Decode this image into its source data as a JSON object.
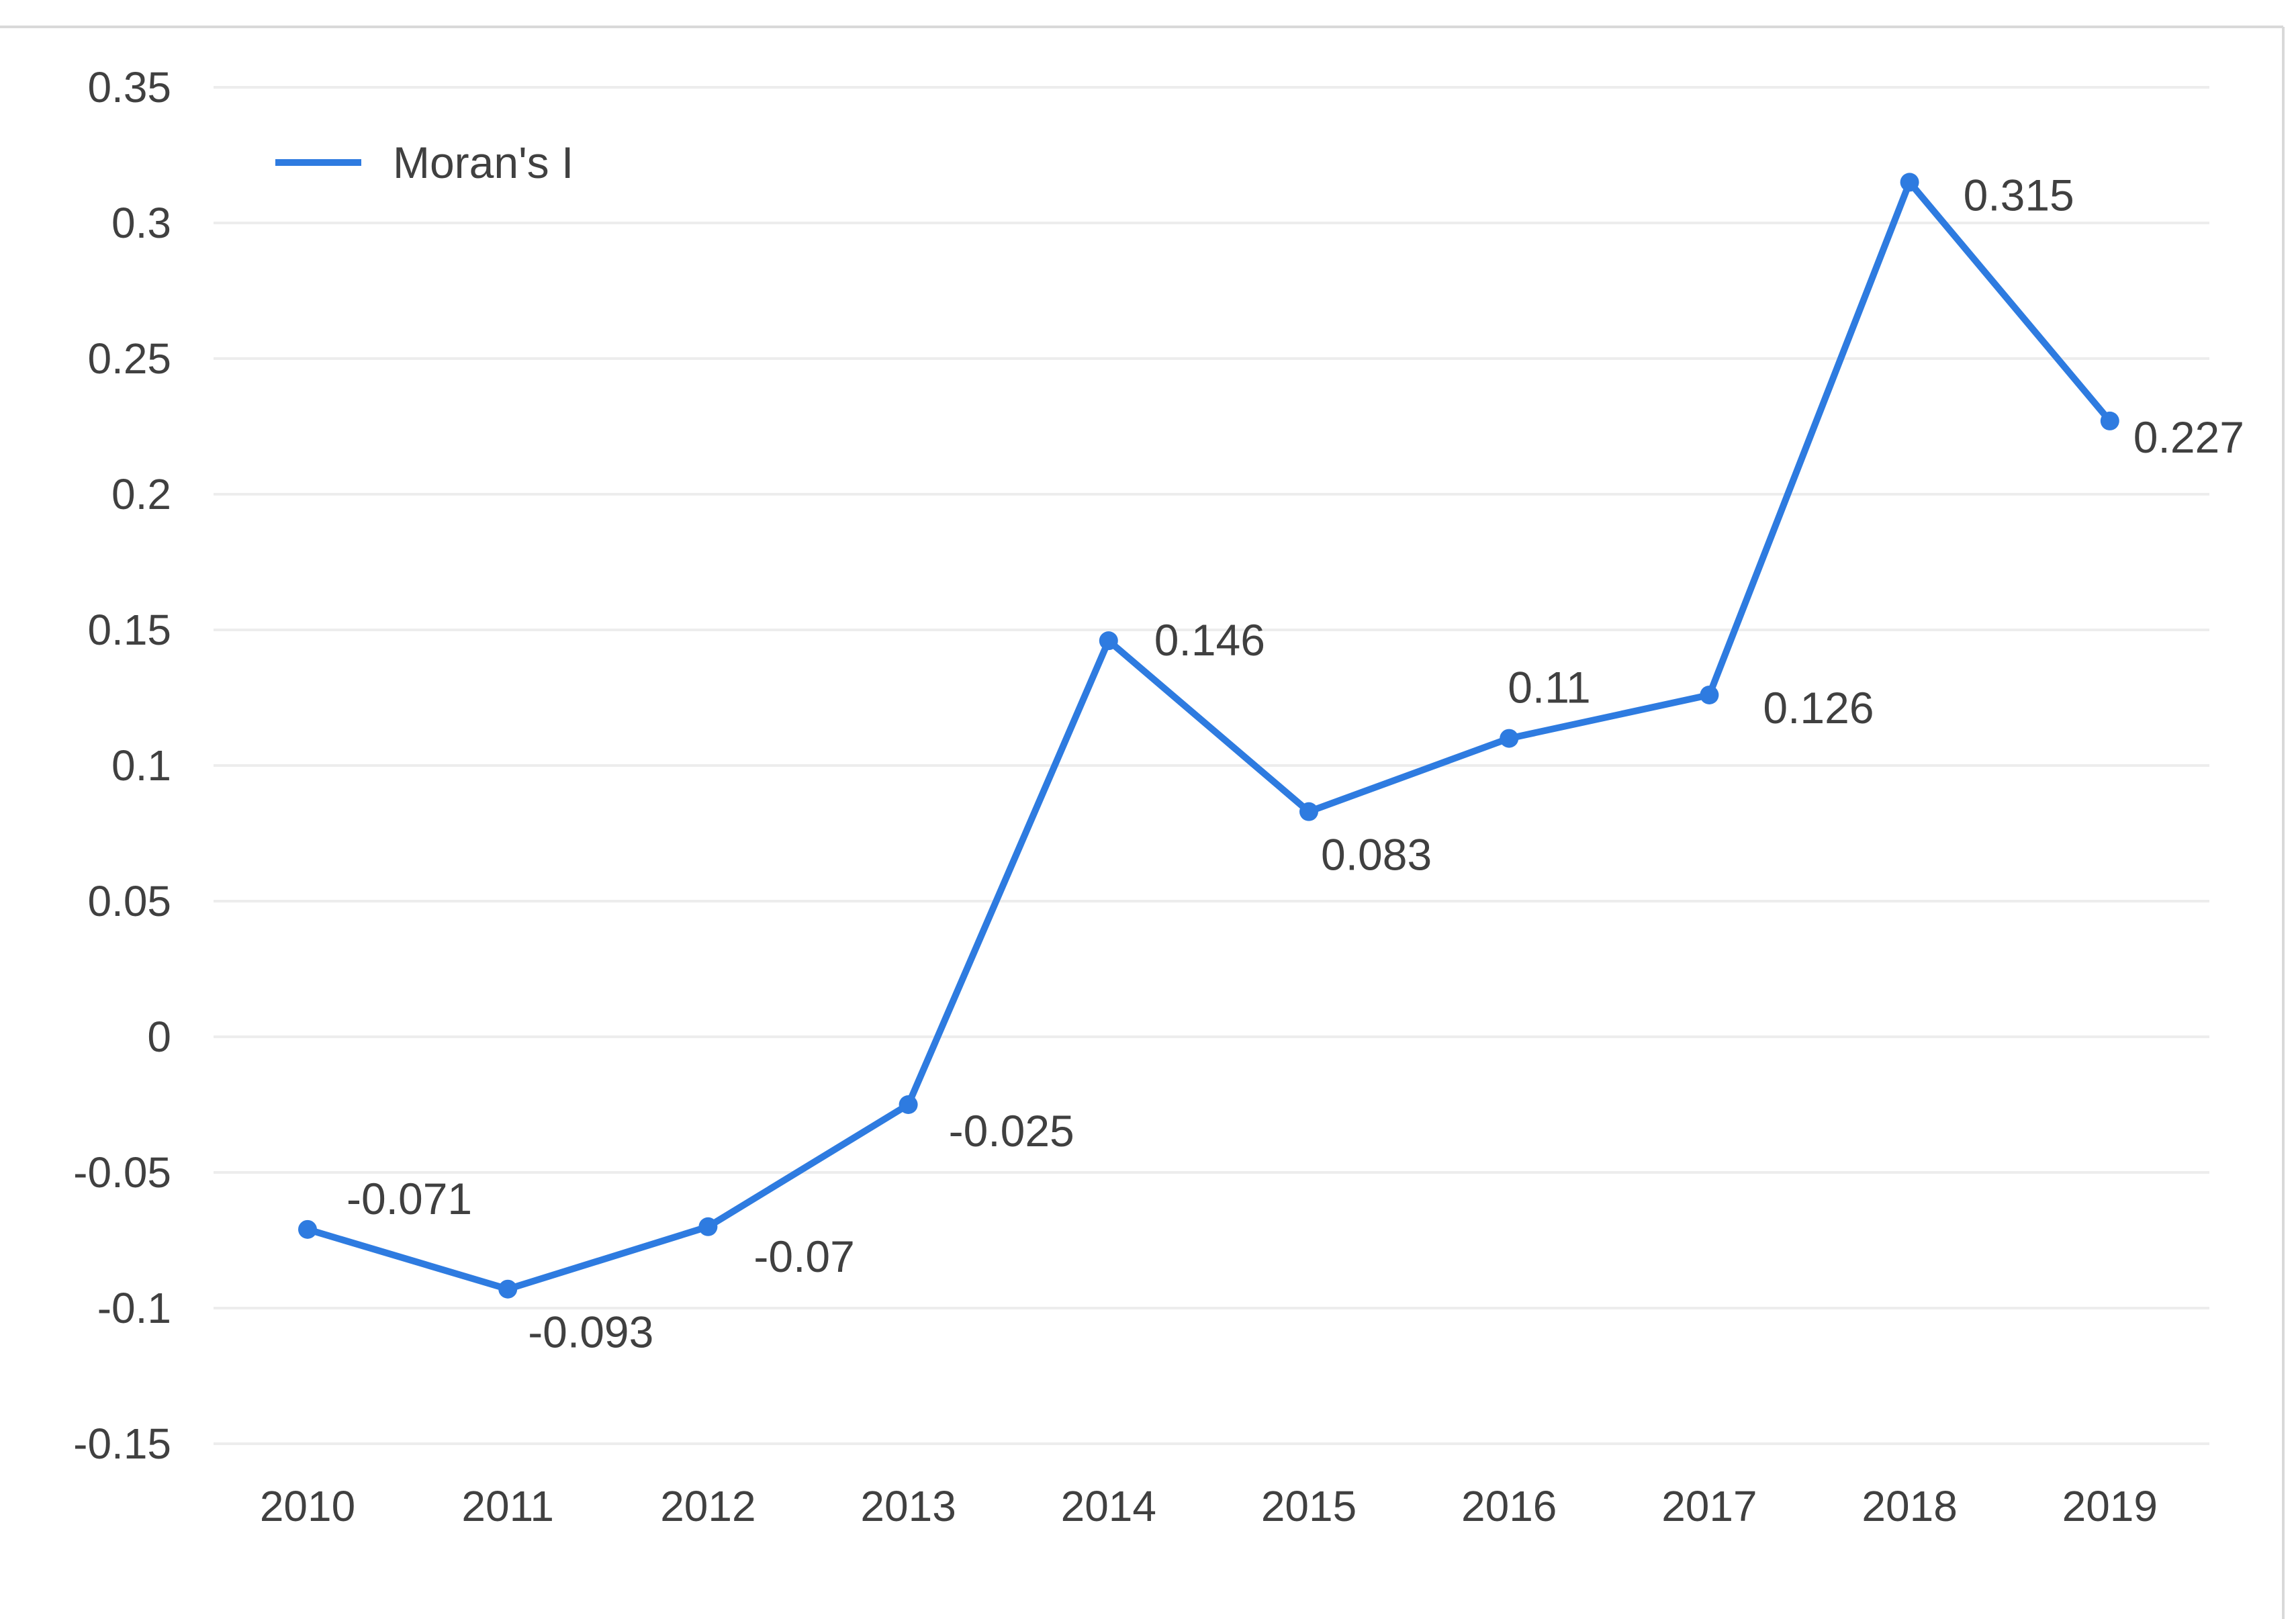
{
  "chart_data": {
    "type": "line",
    "categories": [
      "2010",
      "2011",
      "2012",
      "2013",
      "2014",
      "2015",
      "2016",
      "2017",
      "2018",
      "2019"
    ],
    "series": [
      {
        "name": "Moran's I",
        "values": [
          -0.071,
          -0.093,
          -0.07,
          -0.025,
          0.146,
          0.083,
          0.11,
          0.126,
          0.315,
          0.227
        ],
        "labels": [
          "-0.071",
          "-0.093",
          "-0.07",
          "-0.025",
          "0.146",
          "0.083",
          "0.11",
          "0.126",
          "0.315",
          "0.227"
        ],
        "color": "#2E7BE0"
      }
    ],
    "y_ticks": [
      0.35,
      0.3,
      0.25,
      0.2,
      0.15,
      0.1,
      0.05,
      0,
      -0.05,
      -0.1,
      -0.15
    ],
    "y_tick_labels": [
      "0.35",
      "0.3",
      "0.25",
      "0.2",
      "0.15",
      "0.1",
      "0.05",
      "0",
      "-0.05",
      "-0.1",
      "-0.15"
    ],
    "ylim": [
      -0.15,
      0.35
    ],
    "title": "",
    "xlabel": "",
    "ylabel": "",
    "grid": true,
    "legend_position": "top-left"
  },
  "colors": {
    "line": "#2E7BE0",
    "grid": "#EDEDED",
    "text": "#404040",
    "frame": "#D9D9D9"
  }
}
